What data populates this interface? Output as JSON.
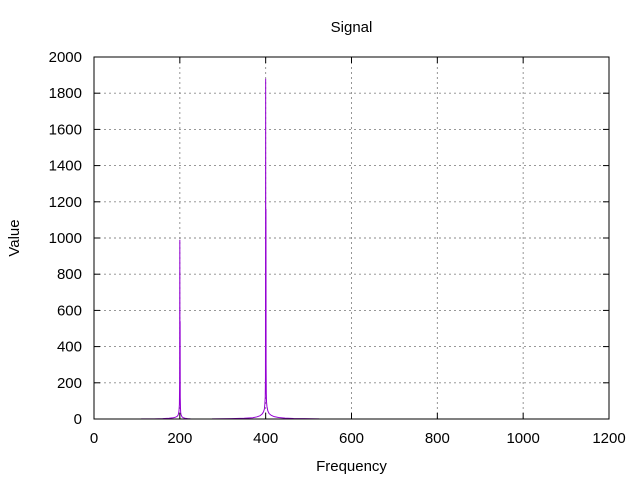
{
  "chart_data": {
    "type": "line",
    "title": "Signal",
    "xlabel": "Frequency",
    "ylabel": "Value",
    "xlim": [
      0,
      1200
    ],
    "ylim": [
      0,
      2000
    ],
    "xticks": [
      0,
      200,
      400,
      600,
      800,
      1000,
      1200
    ],
    "yticks": [
      0,
      200,
      400,
      600,
      800,
      1000,
      1200,
      1400,
      1600,
      1800,
      2000
    ],
    "grid": true,
    "legend": "none",
    "color": "#9400d3",
    "series": [
      {
        "segments": [
          {
            "x": [
              110,
              140,
              160,
              175,
              185,
              190,
              194,
              196,
              197,
              198,
              199,
              199.5,
              200,
              200.3,
              200.7,
              201,
              201.5,
              202,
              203,
              205,
              208,
              212,
              218,
              225
            ],
            "y": [
              0.5,
              1,
              2,
              4,
              7,
              10,
              15,
              22,
              30,
              45,
              80,
              200,
              990,
              300,
              540,
              120,
              60,
              35,
              22,
              12,
              7,
              4,
              2,
              1
            ]
          },
          {
            "x": [
              275,
              320,
              350,
              370,
              380,
              387,
              392,
              395,
              397,
              398,
              399,
              399.5,
              400,
              400.3,
              400.7,
              401,
              401.5,
              402,
              403,
              405,
              408,
              413,
              420,
              430,
              445,
              465,
              490,
              525
            ],
            "y": [
              1,
              2,
              4,
              7,
              12,
              18,
              28,
              40,
              55,
              80,
              120,
              230,
              1880,
              600,
              1160,
              300,
              140,
              95,
              70,
              45,
              30,
              20,
              13,
              8,
              5,
              3,
              2,
              1
            ]
          }
        ]
      }
    ]
  }
}
